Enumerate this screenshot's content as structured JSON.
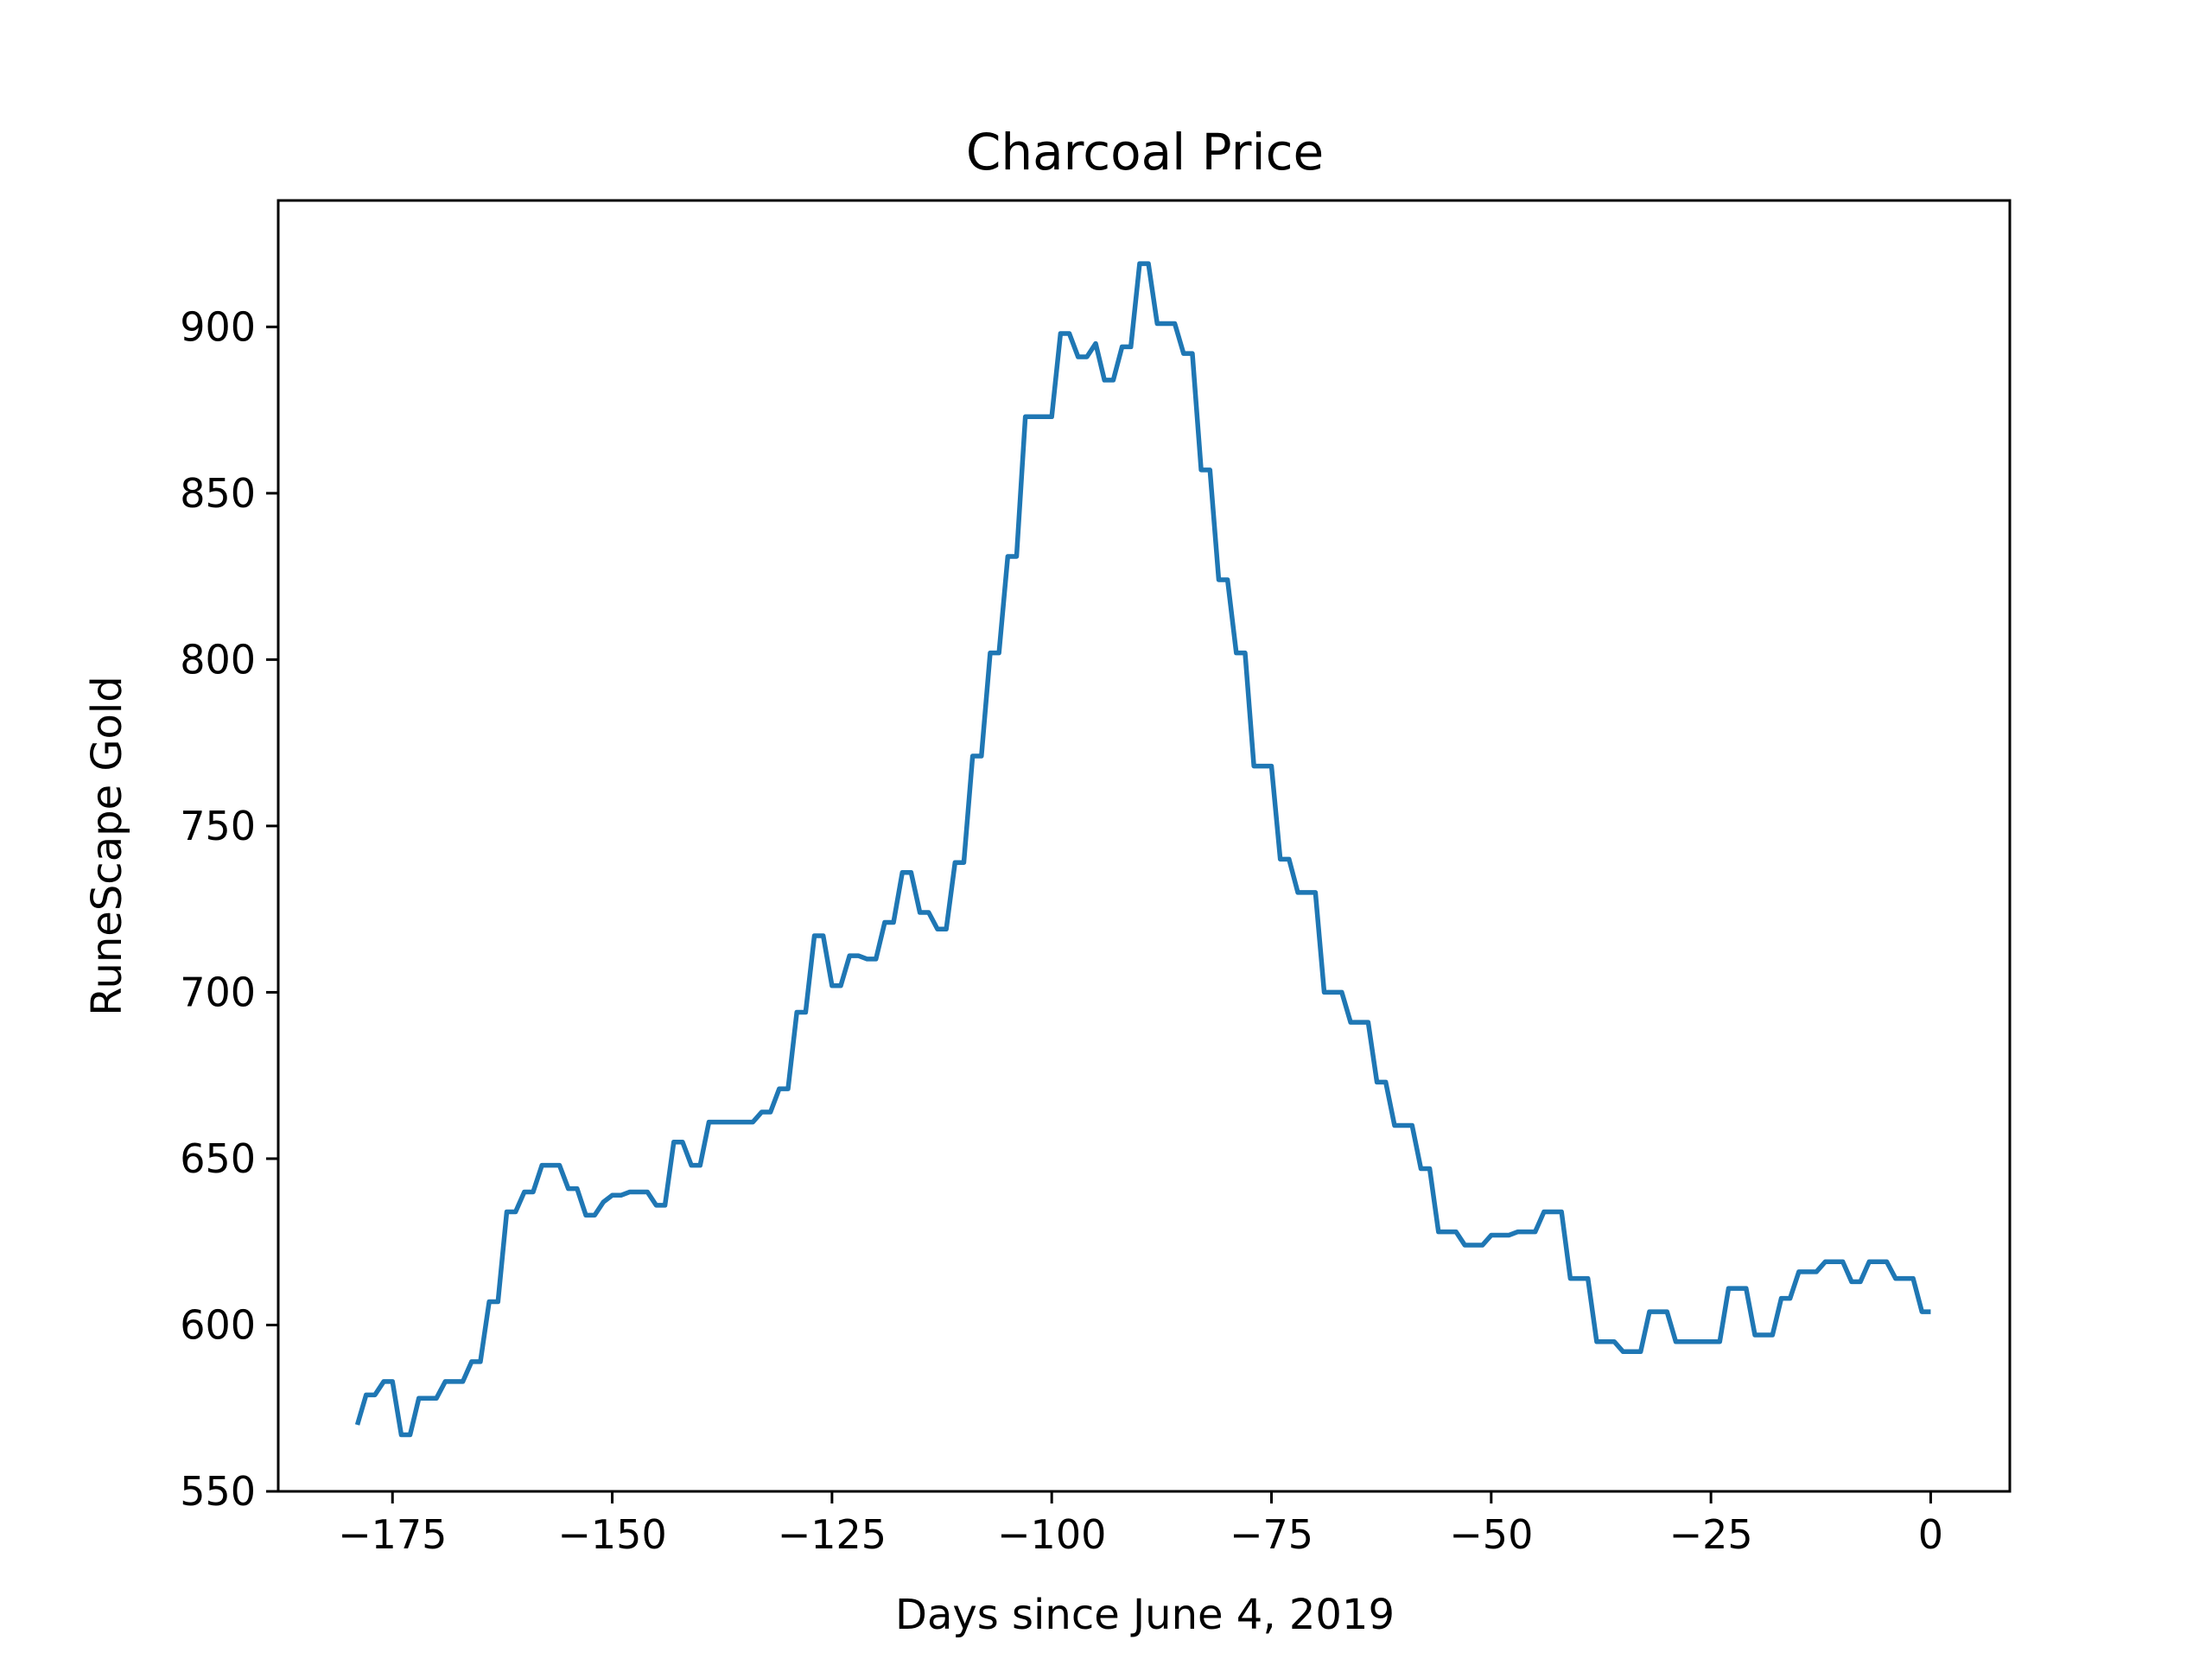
{
  "chart_data": {
    "type": "line",
    "title": "Charcoal Price",
    "xlabel": "Days since June 4, 2019",
    "ylabel": "RuneScape Gold",
    "xlim": [
      -188,
      9
    ],
    "ylim": [
      550,
      938
    ],
    "xticks": [
      -175,
      -150,
      -125,
      -100,
      -75,
      -50,
      -25,
      0
    ],
    "xtick_labels": [
      "−175",
      "−150",
      "−125",
      "−100",
      "−75",
      "−50",
      "−25",
      "0"
    ],
    "yticks": [
      550,
      600,
      650,
      700,
      750,
      800,
      850,
      900
    ],
    "ytick_labels": [
      "550",
      "600",
      "650",
      "700",
      "750",
      "800",
      "850",
      "900"
    ],
    "grid": false,
    "legend": "none",
    "series": [
      {
        "color": "#1f77b4",
        "x": [
          -179,
          -178,
          -177,
          -176,
          -175,
          -174,
          -173,
          -172,
          -171,
          -170,
          -169,
          -168,
          -167,
          -166,
          -165,
          -164,
          -163,
          -162,
          -161,
          -160,
          -159,
          -158,
          -157,
          -156,
          -155,
          -154,
          -153,
          -152,
          -151,
          -150,
          -149,
          -148,
          -147,
          -146,
          -145,
          -144,
          -143,
          -142,
          -141,
          -140,
          -139,
          -138,
          -137,
          -136,
          -135,
          -134,
          -133,
          -132,
          -131,
          -130,
          -129,
          -128,
          -127,
          -126,
          -125,
          -124,
          -123,
          -122,
          -121,
          -120,
          -119,
          -118,
          -117,
          -116,
          -115,
          -114,
          -113,
          -112,
          -111,
          -110,
          -109,
          -108,
          -107,
          -106,
          -105,
          -104,
          -103,
          -102,
          -101,
          -100,
          -99,
          -98,
          -97,
          -96,
          -95,
          -94,
          -93,
          -92,
          -91,
          -90,
          -89,
          -88,
          -87,
          -86,
          -85,
          -84,
          -83,
          -82,
          -81,
          -80,
          -79,
          -78,
          -77,
          -76,
          -75,
          -74,
          -73,
          -72,
          -71,
          -70,
          -69,
          -68,
          -67,
          -66,
          -65,
          -64,
          -63,
          -62,
          -61,
          -60,
          -59,
          -58,
          -57,
          -56,
          -55,
          -54,
          -53,
          -52,
          -51,
          -50,
          -49,
          -48,
          -47,
          -46,
          -45,
          -44,
          -43,
          -42,
          -41,
          -40,
          -39,
          -38,
          -37,
          -36,
          -35,
          -34,
          -33,
          -32,
          -31,
          -30,
          -29,
          -28,
          -27,
          -26,
          -25,
          -24,
          -23,
          -22,
          -21,
          -20,
          -19,
          -18,
          -17,
          -16,
          -15,
          -14,
          -13,
          -12,
          -11,
          -10,
          -9,
          -8,
          -7,
          -6,
          -5,
          -4,
          -3,
          -2,
          -1,
          0
        ],
        "y": [
          570,
          579,
          579,
          583,
          583,
          567,
          567,
          578,
          578,
          578,
          583,
          583,
          583,
          589,
          589,
          607,
          607,
          634,
          634,
          640,
          640,
          648,
          648,
          648,
          641,
          641,
          633,
          633,
          637,
          639,
          639,
          640,
          640,
          640,
          636,
          636,
          655,
          655,
          648,
          648,
          661,
          661,
          661,
          661,
          661,
          661,
          664,
          664,
          671,
          671,
          694,
          694,
          717,
          717,
          702,
          702,
          711,
          711,
          710,
          710,
          721,
          721,
          736,
          736,
          724,
          724,
          719,
          719,
          739,
          739,
          771,
          771,
          802,
          802,
          831,
          831,
          873,
          873,
          873,
          873,
          898,
          898,
          891,
          891,
          895,
          884,
          884,
          894,
          894,
          919,
          919,
          901,
          901,
          901,
          892,
          892,
          857,
          857,
          824,
          824,
          802,
          802,
          768,
          768,
          768,
          740,
          740,
          730,
          730,
          730,
          700,
          700,
          700,
          691,
          691,
          691,
          673,
          673,
          660,
          660,
          660,
          647,
          647,
          628,
          628,
          628,
          624,
          624,
          624,
          627,
          627,
          627,
          628,
          628,
          628,
          634,
          634,
          634,
          614,
          614,
          614,
          595,
          595,
          595,
          592,
          592,
          592,
          604,
          604,
          604,
          595,
          595,
          595,
          595,
          595,
          595,
          611,
          611,
          611,
          597,
          597,
          597,
          608,
          608,
          616,
          616,
          616,
          619,
          619,
          619,
          613,
          613,
          619,
          619,
          619,
          614,
          614,
          614,
          604,
          604
        ]
      }
    ]
  }
}
